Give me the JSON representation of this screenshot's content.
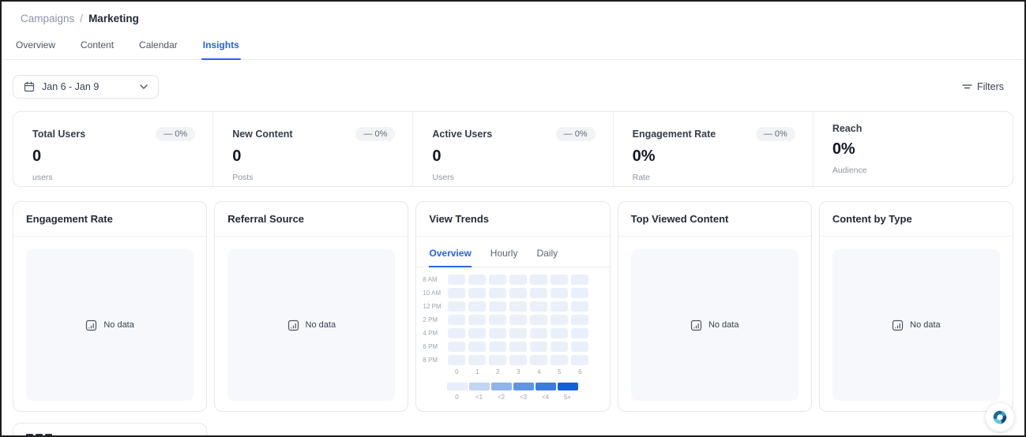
{
  "breadcrumb": {
    "parent": "Campaigns",
    "separator": "/",
    "current": "Marketing"
  },
  "tabs": [
    {
      "label": "Overview",
      "active": false
    },
    {
      "label": "Content",
      "active": false
    },
    {
      "label": "Calendar",
      "active": false
    },
    {
      "label": "Insights",
      "active": true
    }
  ],
  "toolbar": {
    "date_range": "Jan 6 - Jan 9",
    "filters_label": "Filters"
  },
  "stats": [
    {
      "label": "Total Users",
      "value": "0",
      "unit": "users",
      "badge": "— 0%"
    },
    {
      "label": "New Content",
      "value": "0",
      "unit": "Posts",
      "badge": "— 0%"
    },
    {
      "label": "Active Users",
      "value": "0",
      "unit": "Users",
      "badge": "— 0%"
    },
    {
      "label": "Engagement Rate",
      "value": "0%",
      "unit": "Rate",
      "badge": "— 0%"
    },
    {
      "label": "Reach",
      "value": "0%",
      "unit": "Audience",
      "badge": null
    }
  ],
  "cards": [
    {
      "title": "Engagement Rate",
      "empty": "No data"
    },
    {
      "title": "Referral Source",
      "empty": "No data"
    },
    {
      "title": "View Trends",
      "tabs": [
        {
          "label": "Overview",
          "active": true
        },
        {
          "label": "Hourly",
          "active": false
        },
        {
          "label": "Daily",
          "active": false
        }
      ]
    },
    {
      "title": "Top Viewed Content",
      "empty": "No data"
    },
    {
      "title": "Content by Type",
      "empty": "No data"
    }
  ],
  "chart_data": {
    "type": "heatmap",
    "title": "View Trends",
    "rows": [
      "8 AM",
      "10 AM",
      "12 PM",
      "2 PM",
      "4 PM",
      "6 PM",
      "8 PM"
    ],
    "columns": [
      "0",
      "1",
      "2",
      "3",
      "4",
      "5",
      "6"
    ],
    "values": [
      [
        0,
        0,
        0,
        0,
        0,
        0,
        0
      ],
      [
        0,
        0,
        0,
        0,
        0,
        0,
        0
      ],
      [
        0,
        0,
        0,
        0,
        0,
        0,
        0
      ],
      [
        0,
        0,
        0,
        0,
        0,
        0,
        0
      ],
      [
        0,
        0,
        0,
        0,
        0,
        0,
        0
      ],
      [
        0,
        0,
        0,
        0,
        0,
        0,
        0
      ],
      [
        0,
        0,
        0,
        0,
        0,
        0,
        0
      ]
    ],
    "cell_color": "#eaf0fa",
    "legend": {
      "labels": [
        "0",
        "<1",
        "<2",
        "<3",
        "<4",
        "5+"
      ],
      "colors": [
        "#e8eefa",
        "#c2d5f2",
        "#8fb3eb",
        "#6095e4",
        "#3b7bde",
        "#1460d9"
      ],
      "position": "bottom"
    }
  },
  "colors": {
    "accent": "#2563eb",
    "card_border": "#e5e8ec",
    "placeholder_bg": "#f6f8fb"
  }
}
